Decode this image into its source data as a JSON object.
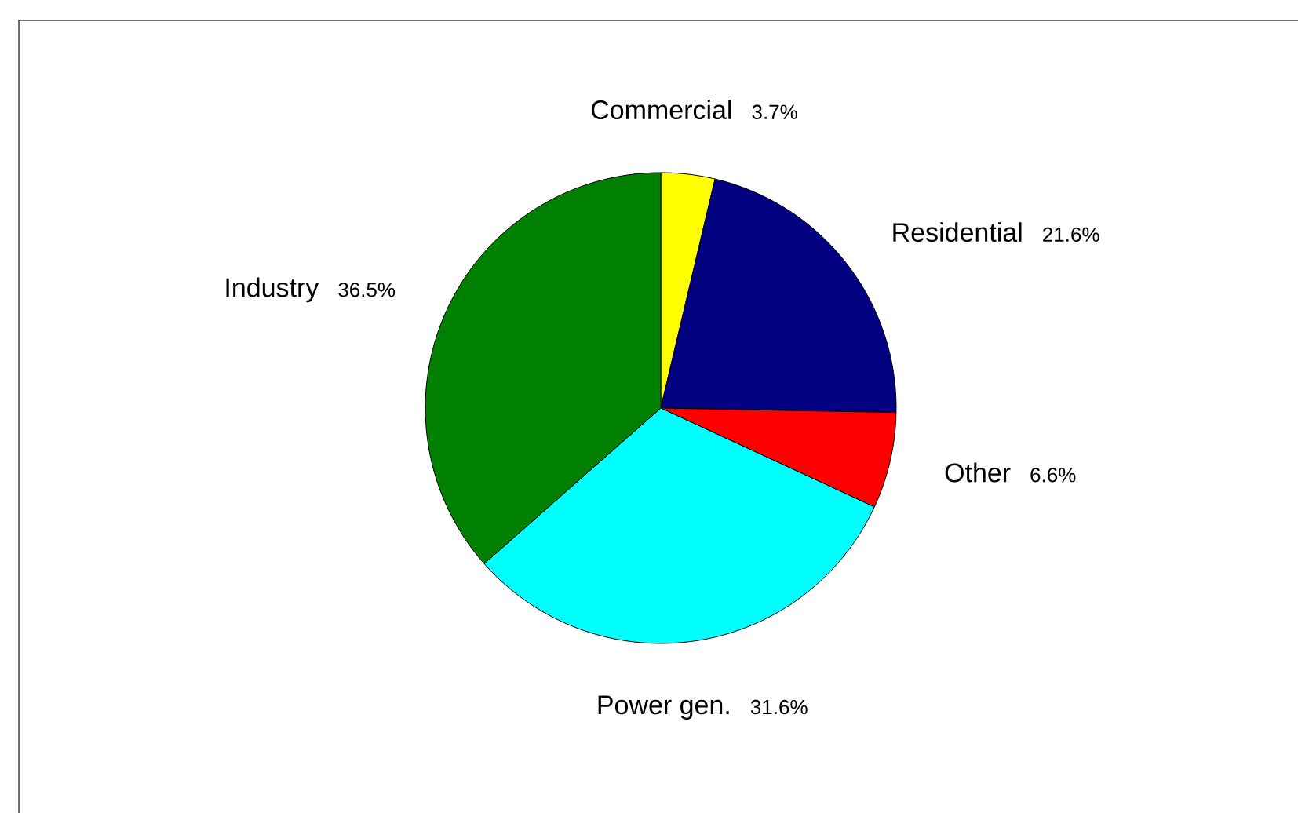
{
  "chart_data": {
    "type": "pie",
    "categories": [
      "Commercial",
      "Residential",
      "Other",
      "Power gen.",
      "Industry"
    ],
    "values": [
      3.7,
      21.6,
      6.6,
      31.6,
      36.5
    ],
    "colors": [
      "#ffff00",
      "#000080",
      "#ff0000",
      "#00ffff",
      "#008000"
    ],
    "value_labels": [
      "3.7%",
      "21.6%",
      "6.6%",
      "31.6%",
      "36.5%"
    ]
  }
}
